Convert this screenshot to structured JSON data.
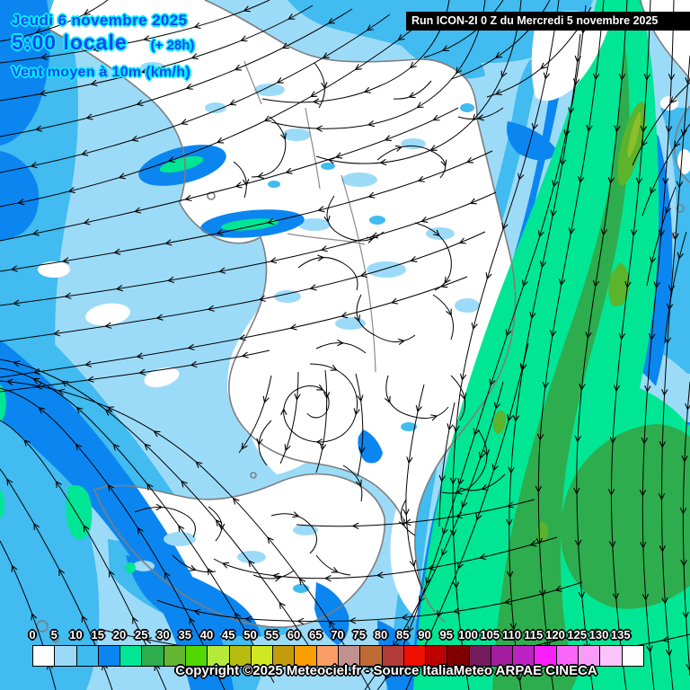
{
  "header": {
    "date": "Jeudi 6 novembre 2025",
    "time": "5:00 locale",
    "offset": "(+ 28h)",
    "variable": "Vent moyen à 10m (km/h)"
  },
  "run_banner": {
    "text": "Run ICON-2I 0 Z du Mercredi 5 novembre 2025"
  },
  "footer": {
    "copyright": "Copyright ©2025 Meteociel.fr - Source ItaliaMeteo ARPAE CINECA"
  },
  "legend": {
    "unit": "km/h",
    "ticks": [
      "0",
      "5",
      "10",
      "15",
      "20",
      "25",
      "30",
      "35",
      "40",
      "45",
      "50",
      "55",
      "60",
      "65",
      "70",
      "75",
      "80",
      "85",
      "90",
      "95",
      "100",
      "105",
      "110",
      "115",
      "120",
      "125",
      "130",
      "135"
    ],
    "colors": [
      "#FFFFFF",
      "#9BDAF7",
      "#40BBF0",
      "#0B85F0",
      "#00E695",
      "#2EAD4E",
      "#63B532",
      "#52D800",
      "#B5E93B",
      "#B8BC10",
      "#D0E821",
      "#C39B0C",
      "#FB9E00",
      "#FB9E66",
      "#C29090",
      "#C06B36",
      "#B03B39",
      "#EF1000",
      "#BD0000",
      "#7F0000",
      "#761A5E",
      "#A21E9E",
      "#BD23C3",
      "#FB20FB",
      "#F966F9",
      "#FA9BFA",
      "#FDC3FD",
      "#FFFFFF"
    ]
  },
  "map": {
    "colors": {
      "calm_white": "#FFFFFF",
      "wind_5_10": "#9CDBF8",
      "wind_10_15": "#41BBF0",
      "wind_15_20": "#0B86F0",
      "wind_20_25": "#00E695",
      "wind_25_30": "#2EAD4E",
      "wind_30_35": "#5CB32C",
      "coastline": "#7E7E7E",
      "streamline": "#000000"
    }
  }
}
